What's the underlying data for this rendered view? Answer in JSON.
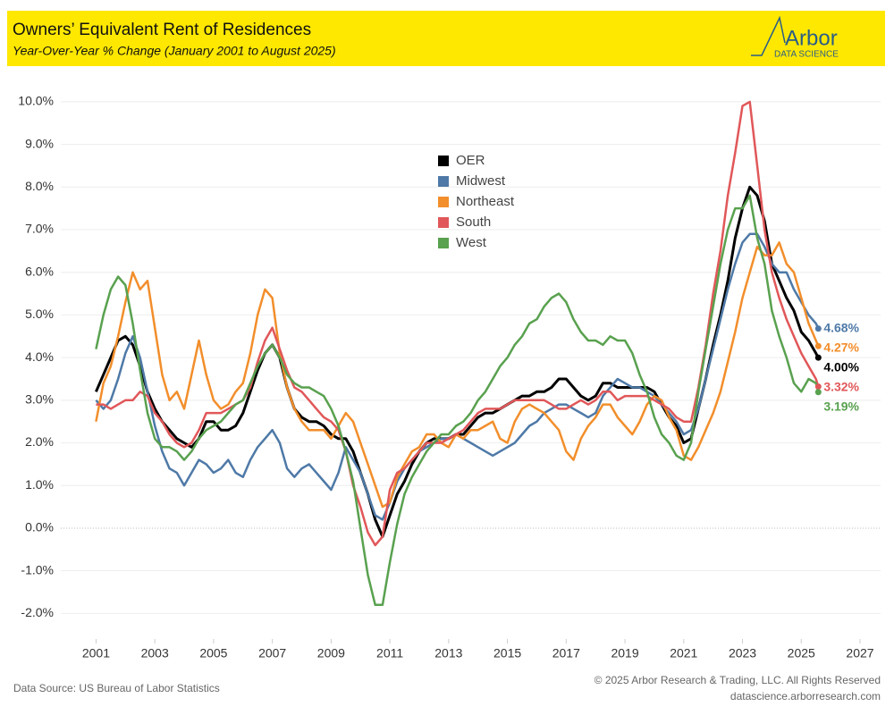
{
  "chart_data": {
    "type": "line",
    "title": "Owners’ Equivalent Rent of Residences",
    "subtitle": "Year-Over-Year % Change (January 2001 to August 2025)",
    "logo": "Arbor",
    "logo_tagline": "DATA SCIENCE",
    "source": "Data Source: US Bureau of Labor Statistics",
    "copyright": "© 2025 Arbor Research & Trading, LLC. All Rights Reserved",
    "website": "datascience.arborresearch.com",
    "legend": "upper center",
    "grid": true,
    "xlim": [
      1999.8,
      2027.7
    ],
    "xticks": [
      2001,
      2003,
      2005,
      2007,
      2009,
      2011,
      2013,
      2015,
      2017,
      2019,
      2021,
      2023,
      2025,
      2027
    ],
    "ylim": [
      -2.6,
      10.5
    ],
    "yticks": [
      {
        "value": -2,
        "label": "-2.0%"
      },
      {
        "value": -1,
        "label": "-1.0%"
      },
      {
        "value": 0,
        "label": "0.0%"
      },
      {
        "value": 1,
        "label": "1.0%"
      },
      {
        "value": 2,
        "label": "2.0%"
      },
      {
        "value": 3,
        "label": "3.0%"
      },
      {
        "value": 4,
        "label": "4.0%"
      },
      {
        "value": 5,
        "label": "5.0%"
      },
      {
        "value": 6,
        "label": "6.0%"
      },
      {
        "value": 7,
        "label": "7.0%"
      },
      {
        "value": 8,
        "label": "8.0%"
      },
      {
        "value": 9,
        "label": "9.0%"
      },
      {
        "value": 10,
        "label": "10.0%"
      }
    ],
    "x": [
      2001,
      2001.25,
      2001.5,
      2001.75,
      2002,
      2002.25,
      2002.5,
      2002.75,
      2003,
      2003.25,
      2003.5,
      2003.75,
      2004,
      2004.25,
      2004.5,
      2004.75,
      2005,
      2005.25,
      2005.5,
      2005.75,
      2006,
      2006.25,
      2006.5,
      2006.75,
      2007,
      2007.25,
      2007.5,
      2007.75,
      2008,
      2008.25,
      2008.5,
      2008.75,
      2009,
      2009.25,
      2009.5,
      2009.75,
      2010,
      2010.25,
      2010.5,
      2010.75,
      2011,
      2011.25,
      2011.5,
      2011.75,
      2012,
      2012.25,
      2012.5,
      2012.75,
      2013,
      2013.25,
      2013.5,
      2013.75,
      2014,
      2014.25,
      2014.5,
      2014.75,
      2015,
      2015.25,
      2015.5,
      2015.75,
      2016,
      2016.25,
      2016.5,
      2016.75,
      2017,
      2017.25,
      2017.5,
      2017.75,
      2018,
      2018.25,
      2018.5,
      2018.75,
      2019,
      2019.25,
      2019.5,
      2019.75,
      2020,
      2020.25,
      2020.5,
      2020.75,
      2021,
      2021.25,
      2021.5,
      2021.75,
      2022,
      2022.25,
      2022.5,
      2022.75,
      2023,
      2023.25,
      2023.5,
      2023.75,
      2024,
      2024.25,
      2024.5,
      2024.75,
      2025,
      2025.25,
      2025.5,
      2025.58
    ],
    "series": [
      {
        "name": "OER",
        "color": "#000000",
        "end_label": "4.00%",
        "values": [
          3.2,
          3.6,
          4.0,
          4.4,
          4.5,
          4.3,
          3.8,
          3.2,
          2.8,
          2.5,
          2.3,
          2.1,
          2.0,
          1.9,
          2.1,
          2.5,
          2.5,
          2.3,
          2.3,
          2.4,
          2.7,
          3.2,
          3.7,
          4.1,
          4.3,
          4.0,
          3.3,
          2.8,
          2.6,
          2.5,
          2.5,
          2.4,
          2.2,
          2.1,
          2.1,
          1.8,
          1.3,
          0.8,
          0.2,
          -0.2,
          0.3,
          0.8,
          1.1,
          1.5,
          1.8,
          2.0,
          2.1,
          2.1,
          2.1,
          2.2,
          2.2,
          2.4,
          2.6,
          2.7,
          2.7,
          2.8,
          2.9,
          3.0,
          3.1,
          3.1,
          3.2,
          3.2,
          3.3,
          3.5,
          3.5,
          3.3,
          3.1,
          3.0,
          3.1,
          3.4,
          3.4,
          3.3,
          3.3,
          3.3,
          3.3,
          3.3,
          3.2,
          2.9,
          2.6,
          2.4,
          2.0,
          2.1,
          2.8,
          3.5,
          4.3,
          5.0,
          5.8,
          6.8,
          7.5,
          8.0,
          7.8,
          7.2,
          6.2,
          5.8,
          5.4,
          5.1,
          4.6,
          4.4,
          4.1,
          4.0
        ]
      },
      {
        "name": "Midwest",
        "color": "#4e79a7",
        "end_label": "4.68%",
        "values": [
          3.0,
          2.8,
          3.0,
          3.5,
          4.1,
          4.5,
          4.0,
          3.2,
          2.4,
          1.8,
          1.4,
          1.3,
          1.0,
          1.3,
          1.6,
          1.5,
          1.3,
          1.4,
          1.6,
          1.3,
          1.2,
          1.6,
          1.9,
          2.1,
          2.3,
          2.0,
          1.4,
          1.2,
          1.4,
          1.5,
          1.3,
          1.1,
          0.9,
          1.3,
          1.9,
          1.6,
          1.3,
          0.8,
          0.3,
          0.2,
          0.6,
          1.1,
          1.4,
          1.6,
          1.8,
          1.9,
          2.0,
          2.1,
          2.1,
          2.2,
          2.1,
          2.0,
          1.9,
          1.8,
          1.7,
          1.8,
          1.9,
          2.0,
          2.2,
          2.4,
          2.5,
          2.7,
          2.8,
          2.9,
          2.9,
          2.8,
          2.7,
          2.6,
          2.7,
          3.1,
          3.3,
          3.5,
          3.4,
          3.3,
          3.3,
          3.2,
          3.1,
          2.9,
          2.7,
          2.5,
          2.2,
          2.3,
          2.8,
          3.5,
          4.2,
          4.9,
          5.6,
          6.2,
          6.7,
          6.9,
          6.9,
          6.6,
          6.2,
          6.0,
          6.0,
          5.6,
          5.3,
          5.0,
          4.8,
          4.68
        ]
      },
      {
        "name": "Northeast",
        "color": "#f28e2b",
        "end_label": "4.27%",
        "values": [
          2.5,
          3.4,
          3.8,
          4.5,
          5.3,
          6.0,
          5.6,
          5.8,
          4.7,
          3.6,
          3.0,
          3.2,
          2.8,
          3.6,
          4.4,
          3.6,
          3.0,
          2.8,
          2.9,
          3.2,
          3.4,
          4.1,
          5.0,
          5.6,
          5.4,
          4.1,
          3.3,
          2.8,
          2.5,
          2.3,
          2.3,
          2.3,
          2.1,
          2.4,
          2.7,
          2.5,
          2.0,
          1.5,
          1.0,
          0.5,
          0.6,
          1.2,
          1.5,
          1.8,
          1.9,
          2.2,
          2.2,
          2.0,
          1.9,
          2.2,
          2.1,
          2.3,
          2.3,
          2.4,
          2.5,
          2.1,
          2.0,
          2.5,
          2.8,
          2.9,
          2.8,
          2.7,
          2.5,
          2.3,
          1.8,
          1.6,
          2.1,
          2.4,
          2.6,
          2.9,
          2.9,
          2.6,
          2.4,
          2.2,
          2.5,
          2.9,
          3.1,
          3.0,
          2.6,
          2.3,
          1.7,
          1.6,
          1.9,
          2.3,
          2.7,
          3.2,
          3.9,
          4.6,
          5.4,
          6.0,
          6.6,
          6.4,
          6.4,
          6.7,
          6.2,
          6.0,
          5.4,
          4.8,
          4.4,
          4.27
        ]
      },
      {
        "name": "South",
        "color": "#e15759",
        "end_label": "3.32%",
        "values": [
          2.9,
          2.9,
          2.8,
          2.9,
          3.0,
          3.0,
          3.2,
          3.1,
          2.7,
          2.5,
          2.2,
          2.0,
          1.9,
          2.0,
          2.3,
          2.7,
          2.7,
          2.7,
          2.8,
          2.9,
          3.0,
          3.3,
          3.9,
          4.4,
          4.7,
          4.2,
          3.7,
          3.3,
          3.2,
          3.0,
          2.8,
          2.6,
          2.5,
          2.3,
          1.8,
          1.0,
          0.5,
          -0.1,
          -0.4,
          -0.2,
          0.9,
          1.3,
          1.4,
          1.6,
          1.8,
          2.0,
          2.0,
          2.0,
          2.1,
          2.2,
          2.3,
          2.5,
          2.7,
          2.8,
          2.8,
          2.8,
          2.9,
          3.0,
          3.0,
          3.0,
          3.0,
          3.0,
          2.9,
          2.8,
          2.8,
          2.9,
          3.0,
          2.9,
          3.0,
          3.2,
          3.2,
          3.0,
          3.1,
          3.1,
          3.1,
          3.1,
          3.0,
          2.9,
          2.8,
          2.6,
          2.5,
          2.5,
          3.3,
          4.3,
          5.5,
          6.5,
          7.8,
          8.8,
          9.9,
          10.0,
          8.5,
          7.0,
          6.0,
          5.4,
          4.9,
          4.5,
          4.1,
          3.8,
          3.5,
          3.32
        ]
      },
      {
        "name": "West",
        "color": "#59a14f",
        "end_label": "3.19%",
        "values": [
          4.2,
          5.0,
          5.6,
          5.9,
          5.7,
          4.8,
          3.7,
          2.7,
          2.1,
          1.9,
          1.9,
          1.8,
          1.6,
          1.8,
          2.1,
          2.3,
          2.4,
          2.5,
          2.7,
          2.9,
          3.0,
          3.4,
          3.8,
          4.1,
          4.3,
          4.0,
          3.6,
          3.4,
          3.3,
          3.3,
          3.2,
          3.1,
          2.8,
          2.4,
          1.8,
          1.1,
          0.0,
          -1.1,
          -1.8,
          -1.8,
          -0.8,
          0.1,
          0.8,
          1.2,
          1.5,
          1.8,
          2.0,
          2.2,
          2.2,
          2.4,
          2.5,
          2.7,
          3.0,
          3.2,
          3.5,
          3.8,
          4.0,
          4.3,
          4.5,
          4.8,
          4.9,
          5.2,
          5.4,
          5.5,
          5.3,
          4.9,
          4.6,
          4.4,
          4.4,
          4.3,
          4.5,
          4.4,
          4.4,
          4.1,
          3.6,
          3.2,
          2.6,
          2.2,
          2.0,
          1.7,
          1.6,
          2.0,
          3.2,
          4.2,
          5.2,
          6.2,
          7.0,
          7.5,
          7.5,
          7.8,
          6.8,
          6.2,
          5.1,
          4.5,
          4.0,
          3.4,
          3.2,
          3.5,
          3.4,
          3.19
        ]
      }
    ]
  }
}
